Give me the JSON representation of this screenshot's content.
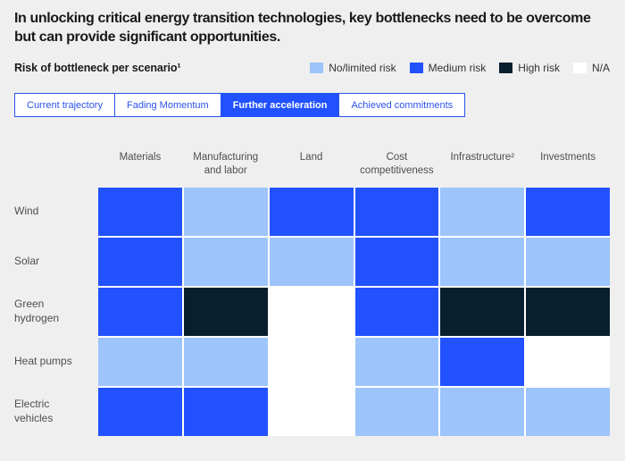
{
  "title": "In unlocking critical energy transition technologies, key bottlenecks need to be overcome but can provide significant opportunities.",
  "subtitle": "Risk of bottleneck per scenario¹",
  "legend": {
    "items": [
      {
        "key": "no_limited",
        "label": "No/limited risk",
        "color": "#9DC4FB"
      },
      {
        "key": "medium",
        "label": "Medium risk",
        "color": "#2251FF"
      },
      {
        "key": "high",
        "label": "High risk",
        "color": "#081F2E"
      },
      {
        "key": "na",
        "label": "N/A",
        "color": "#FFFFFF"
      }
    ]
  },
  "tabs": [
    {
      "label": "Current trajectory",
      "selected": false
    },
    {
      "label": "Fading Momentum",
      "selected": false
    },
    {
      "label": "Further acceleration",
      "selected": true
    },
    {
      "label": "Achieved commitments",
      "selected": false
    }
  ],
  "colors": {
    "accent": "#2251FF",
    "background": "#EFEFEF",
    "tab_border": "#2B52E8",
    "grid_gap": "#FFFFFF",
    "text_dark": "#191919",
    "text_muted": "#4E4E4E"
  },
  "chart_data": {
    "type": "heatmap",
    "title": "Risk of bottleneck per scenario¹",
    "selected_scenario": "Further acceleration",
    "columns": [
      "Materials",
      "Manufacturing and labor",
      "Land",
      "Cost competitiveness",
      "Infrastructure²",
      "Investments"
    ],
    "rows": [
      "Wind",
      "Solar",
      "Green hydrogen",
      "Heat pumps",
      "Electric vehicles"
    ],
    "value_labels": {
      "no_limited": "No/limited risk",
      "medium": "Medium risk",
      "high": "High risk",
      "na": "N/A"
    },
    "values": [
      [
        "medium",
        "no_limited",
        "medium",
        "medium",
        "no_limited",
        "medium"
      ],
      [
        "medium",
        "no_limited",
        "no_limited",
        "medium",
        "no_limited",
        "no_limited"
      ],
      [
        "medium",
        "high",
        "na",
        "medium",
        "high",
        "high"
      ],
      [
        "no_limited",
        "no_limited",
        "na",
        "no_limited",
        "medium",
        "na"
      ],
      [
        "medium",
        "medium",
        "na",
        "no_limited",
        "no_limited",
        "no_limited"
      ]
    ],
    "legend_position": "top-right",
    "grid": false
  }
}
